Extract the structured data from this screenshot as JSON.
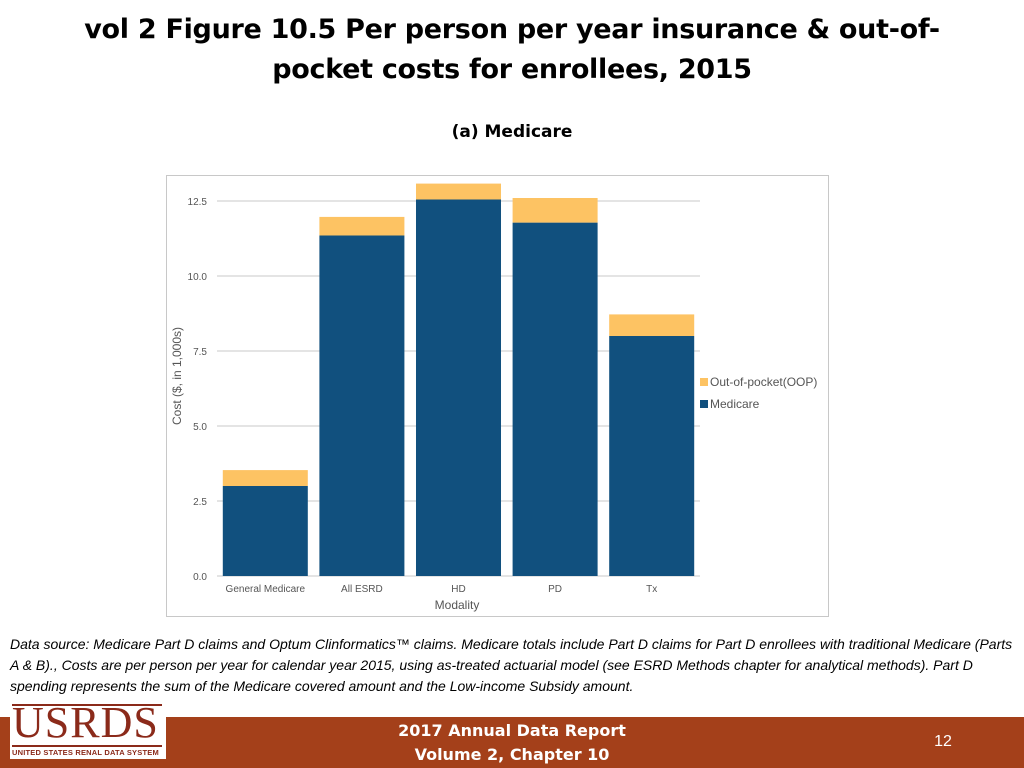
{
  "slide": {
    "title": "vol 2 Figure 10.5 Per person per year insurance & out-of-pocket costs for enrollees, 2015"
  },
  "chart_data": {
    "type": "bar",
    "stacked": true,
    "subtitle": "(a) Medicare",
    "xlabel": "Modality",
    "ylabel": "Cost ($, in 1,000s)",
    "categories": [
      "General Medicare",
      "All ESRD",
      "HD",
      "PD",
      "Tx"
    ],
    "series": [
      {
        "name": "Medicare",
        "values": [
          3.0,
          11.35,
          12.55,
          11.78,
          8.0
        ],
        "color": "#11507e"
      },
      {
        "name": "Out-of-pocket(OOP)",
        "values": [
          0.53,
          0.62,
          0.53,
          0.82,
          0.72
        ],
        "color": "#fdc363"
      }
    ],
    "ylim": [
      0,
      13
    ],
    "yticks": [
      "0.0",
      "2.5",
      "5.0",
      "7.5",
      "10.0",
      "12.5"
    ],
    "ytick_values": [
      0,
      2.5,
      5,
      7.5,
      10,
      12.5
    ],
    "grid": true,
    "legend_position": "right"
  },
  "footnote": "Data source: Medicare Part D claims and Optum Clinformatics™ claims. Medicare totals include Part D claims for Part D enrollees with traditional Medicare (Parts A & B)., Costs are per person per year for calendar year 2015, using as-treated actuarial model (see ESRD Methods chapter for analytical methods). Part D spending represents the sum of the Medicare covered amount and the Low-income Subsidy amount.",
  "footer": {
    "line1": "2017 Annual Data Report",
    "line2": "Volume 2, Chapter 10",
    "page_number": "12",
    "logo_text": "USRDS",
    "logo_subtext": "UNITED STATES RENAL DATA SYSTEM",
    "bar_color": "#a4401a"
  }
}
